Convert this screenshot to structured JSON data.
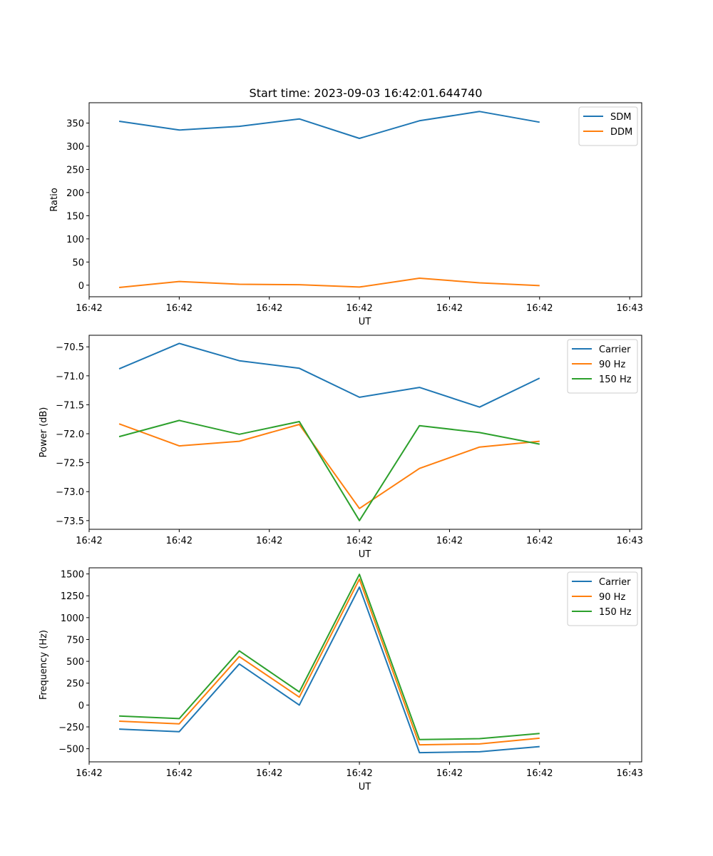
{
  "figure_title": "Start time: 2023-09-03 16:42:01.644740",
  "colors": {
    "blue": "#1f77b4",
    "orange": "#ff7f0e",
    "green": "#2ca02c"
  },
  "chart_data": [
    {
      "type": "line",
      "title": "Start time: 2023-09-03 16:42:01.644740",
      "xlabel": "UT",
      "ylabel": "Ratio",
      "x": [
        1,
        2,
        3,
        4,
        5,
        6,
        7,
        8
      ],
      "xlim": [
        0.5,
        9.7
      ],
      "xtick_positions": [
        0.5,
        2,
        3.5,
        5,
        6.5,
        8,
        9.5
      ],
      "xtick_labels": [
        "16:42",
        "16:42",
        "16:42",
        "16:42",
        "16:42",
        "16:42",
        "16:43"
      ],
      "ylim": [
        -25,
        394
      ],
      "yticks": [
        0,
        50,
        100,
        150,
        200,
        250,
        300,
        350
      ],
      "ytick_labels": [
        "0",
        "50",
        "100",
        "150",
        "200",
        "250",
        "300",
        "350"
      ],
      "legend_position": "top-right",
      "series": [
        {
          "name": "SDM",
          "color": "#1f77b4",
          "values": [
            354,
            335,
            343,
            359,
            317,
            355,
            375,
            352
          ]
        },
        {
          "name": "DDM",
          "color": "#ff7f0e",
          "values": [
            -5,
            8,
            2,
            1,
            -4,
            15,
            5,
            -1
          ]
        }
      ]
    },
    {
      "type": "line",
      "title": "",
      "xlabel": "UT",
      "ylabel": "Power (dB)",
      "x": [
        1,
        2,
        3,
        4,
        5,
        6,
        7,
        8
      ],
      "xlim": [
        0.5,
        9.7
      ],
      "xtick_positions": [
        0.5,
        2,
        3.5,
        5,
        6.5,
        8,
        9.5
      ],
      "xtick_labels": [
        "16:42",
        "16:42",
        "16:42",
        "16:42",
        "16:42",
        "16:42",
        "16:43"
      ],
      "ylim": [
        -73.65,
        -70.3
      ],
      "yticks": [
        -70.5,
        -71.0,
        -71.5,
        -72.0,
        -72.5,
        -73.0,
        -73.5
      ],
      "ytick_labels": [
        "−70.5",
        "−71.0",
        "−71.5",
        "−72.0",
        "−72.5",
        "−73.0",
        "−73.5"
      ],
      "legend_position": "top-right",
      "series": [
        {
          "name": "Carrier",
          "color": "#1f77b4",
          "values": [
            -70.88,
            -70.44,
            -70.74,
            -70.87,
            -71.37,
            -71.2,
            -71.54,
            -71.04
          ]
        },
        {
          "name": "90 Hz",
          "color": "#ff7f0e",
          "values": [
            -71.83,
            -72.21,
            -72.13,
            -71.84,
            -73.29,
            -72.6,
            -72.23,
            -72.13
          ]
        },
        {
          "name": "150 Hz",
          "color": "#2ca02c",
          "values": [
            -72.05,
            -71.77,
            -72.01,
            -71.79,
            -73.5,
            -71.86,
            -71.98,
            -72.18
          ]
        }
      ]
    },
    {
      "type": "line",
      "title": "",
      "xlabel": "UT",
      "ylabel": "Frequency (Hz)",
      "x": [
        1,
        2,
        3,
        4,
        5,
        6,
        7,
        8
      ],
      "xlim": [
        0.5,
        9.7
      ],
      "xtick_positions": [
        0.5,
        2,
        3.5,
        5,
        6.5,
        8,
        9.5
      ],
      "xtick_labels": [
        "16:42",
        "16:42",
        "16:42",
        "16:42",
        "16:42",
        "16:42",
        "16:43"
      ],
      "ylim": [
        -650,
        1570
      ],
      "yticks": [
        1500,
        1250,
        1000,
        750,
        500,
        250,
        0,
        -250,
        -500
      ],
      "ytick_labels": [
        "1500",
        "1250",
        "1000",
        "750",
        "500",
        "250",
        "0",
        "−250",
        "−500"
      ],
      "legend_position": "top-right",
      "series": [
        {
          "name": "Carrier",
          "color": "#1f77b4",
          "values": [
            -275,
            -305,
            470,
            0,
            1350,
            -545,
            -535,
            -475
          ]
        },
        {
          "name": "90 Hz",
          "color": "#ff7f0e",
          "values": [
            -185,
            -215,
            555,
            90,
            1440,
            -455,
            -445,
            -380
          ]
        },
        {
          "name": "150 Hz",
          "color": "#2ca02c",
          "values": [
            -125,
            -155,
            620,
            150,
            1495,
            -395,
            -385,
            -325
          ]
        }
      ]
    }
  ]
}
